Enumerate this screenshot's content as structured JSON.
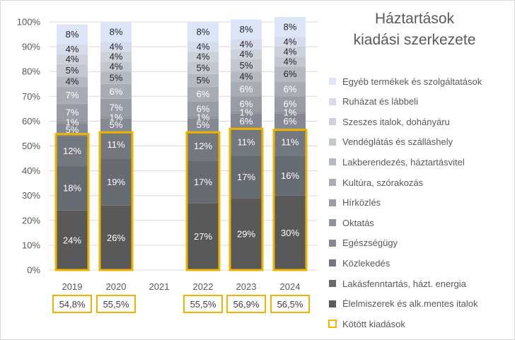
{
  "chart_data": {
    "type": "bar",
    "stacked": true,
    "title": "Háztartások kiadási szerkezete",
    "title_lines": [
      "Háztartások",
      "kiadási szerkezete"
    ],
    "categories": [
      "2019",
      "2020",
      "2021",
      "2022",
      "2023",
      "2024"
    ],
    "y_ticks": [
      "0%",
      "10%",
      "20%",
      "30%",
      "40%",
      "50%",
      "60%",
      "70%",
      "80%",
      "90%",
      "100%"
    ],
    "ylim": [
      0,
      100
    ],
    "legend_position": "right",
    "series": [
      {
        "name": "Élelmiszerek és alk.mentes italok",
        "color": "#595959",
        "values": [
          24,
          26,
          null,
          27,
          29,
          30
        ],
        "labels": [
          "24%",
          "26%",
          "",
          "27%",
          "29%",
          "30%"
        ]
      },
      {
        "name": "Lakásfenntartás, házt. energia",
        "color": "#666a71",
        "values": [
          18,
          19,
          null,
          17,
          17,
          16
        ],
        "labels": [
          "18%",
          "19%",
          "",
          "17%",
          "17%",
          "16%"
        ]
      },
      {
        "name": "Közlekedés",
        "color": "#737780",
        "values": [
          12,
          11,
          null,
          12,
          11,
          11
        ],
        "labels": [
          "12%",
          "11%",
          "",
          "12%",
          "11%",
          "11%"
        ]
      },
      {
        "name": "Egészségügy",
        "color": "#858993",
        "values": [
          5,
          5,
          null,
          5,
          6,
          6
        ],
        "labels": [
          "5%",
          "5%",
          "",
          "5%",
          "6%",
          "6%"
        ]
      },
      {
        "name": "Oktatás",
        "color": "#8f939c",
        "values": [
          1,
          1,
          null,
          1,
          1,
          1
        ],
        "labels": [
          "1%",
          "1%",
          "",
          "1%",
          "1%",
          "1%"
        ]
      },
      {
        "name": "Hírközlés",
        "color": "#989ca5",
        "values": [
          7,
          7,
          null,
          6,
          6,
          6
        ],
        "labels": [
          "7%",
          "7%",
          "",
          "6%",
          "6%",
          "6%"
        ]
      },
      {
        "name": "Kultúra, szórakozás",
        "color": "#a8acb4",
        "values": [
          7,
          6,
          null,
          6,
          6,
          6
        ],
        "labels": [
          "7%",
          "6%",
          "",
          "6%",
          "6%",
          "6%"
        ]
      },
      {
        "name": "Lakberendezés, háztartásvitel",
        "color": "#b5b9c1",
        "values": [
          4,
          5,
          null,
          5,
          4,
          6
        ],
        "labels": [
          "4%",
          "5%",
          "",
          "5%",
          "4%",
          "6%"
        ]
      },
      {
        "name": "Vendéglátás és szálláshely",
        "color": "#c3c7cf",
        "values": [
          5,
          4,
          null,
          5,
          5,
          4
        ],
        "labels": [
          "5%",
          "4%",
          "",
          "5%",
          "5%",
          "4%"
        ]
      },
      {
        "name": "Szeszes italok, dohányáru",
        "color": "#cdd1da",
        "values": [
          4,
          4,
          null,
          4,
          4,
          4
        ],
        "labels": [
          "4%",
          "4%",
          "",
          "4%",
          "4%",
          "4%"
        ]
      },
      {
        "name": "Ruházat és lábbeli",
        "color": "#d7dcec",
        "values": [
          4,
          4,
          null,
          4,
          4,
          4
        ],
        "labels": [
          "4%",
          "4%",
          "",
          "4%",
          "4%",
          "4%"
        ]
      },
      {
        "name": "Egyéb termékek és szolgáltatások",
        "color": "#dce6f8",
        "values": [
          8,
          8,
          null,
          8,
          8,
          8
        ],
        "labels": [
          "8%",
          "8%",
          "",
          "8%",
          "8%",
          "8%"
        ]
      }
    ],
    "bound_expenditure": {
      "name": "Kötött kiadások",
      "color": "#f0b400",
      "values": [
        54.8,
        55.5,
        null,
        55.5,
        56.9,
        56.5
      ],
      "labels": [
        "54,8%",
        "55,5%",
        "",
        "55,5%",
        "56,9%",
        "56,5%"
      ]
    }
  }
}
